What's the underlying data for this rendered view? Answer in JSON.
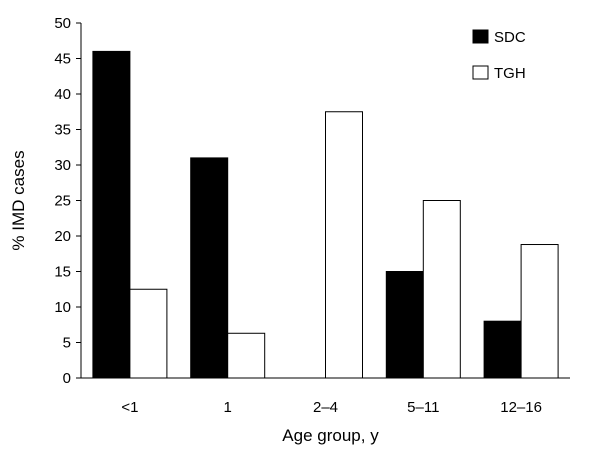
{
  "chart_data": {
    "type": "bar",
    "categories": [
      "<1",
      "1",
      "2–4",
      "5–11",
      "12–16"
    ],
    "series": [
      {
        "name": "SDC",
        "values": [
          46,
          31,
          0,
          15,
          8
        ],
        "color": "#000000"
      },
      {
        "name": "TGH",
        "values": [
          12.5,
          6.3,
          37.5,
          25,
          18.8
        ],
        "color": "#ffffff"
      }
    ],
    "xlabel": "Age group, y",
    "ylabel": "% IMD cases",
    "ylim": [
      0,
      50
    ],
    "yticks": [
      "0",
      "5",
      "10",
      "15",
      "20",
      "25",
      "30",
      "35",
      "40",
      "45",
      "50"
    ],
    "grid": false,
    "legend_position": "top-right"
  }
}
